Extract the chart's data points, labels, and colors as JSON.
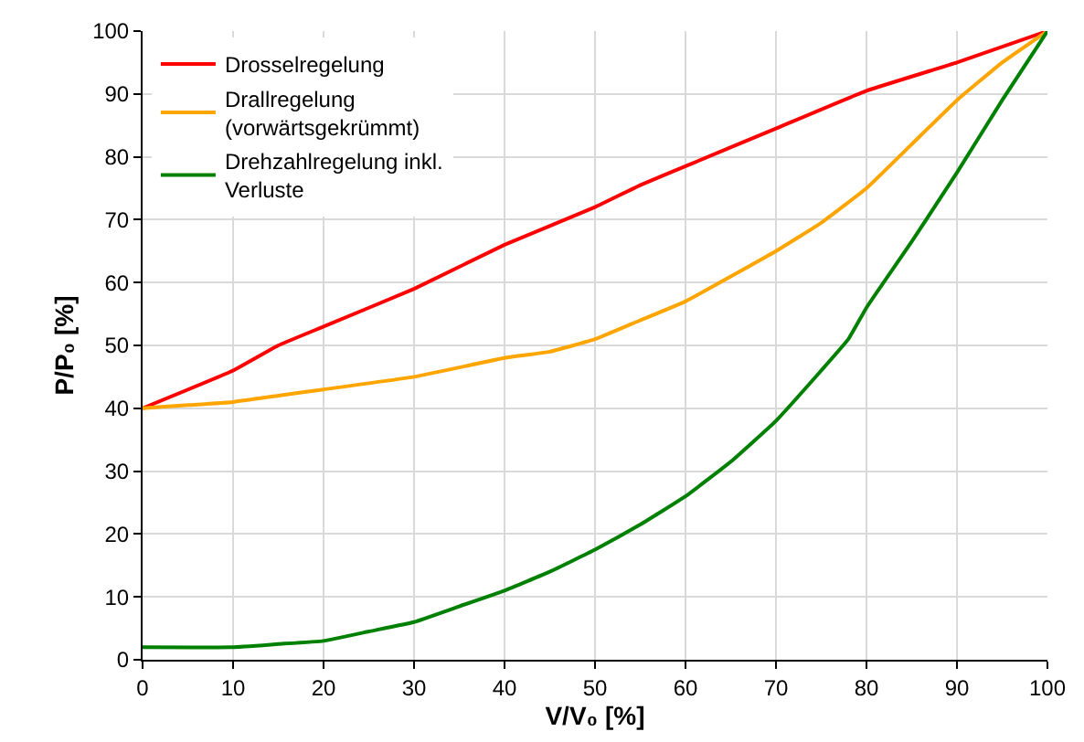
{
  "chart_data": {
    "type": "line",
    "xlabel": "V/V₀ [%]",
    "ylabel": "P/P₀ [%]",
    "xlim": [
      0,
      100
    ],
    "ylim": [
      0,
      100
    ],
    "xticks": [
      0,
      10,
      20,
      30,
      40,
      50,
      60,
      70,
      80,
      90,
      100
    ],
    "yticks": [
      0,
      10,
      20,
      30,
      40,
      50,
      60,
      70,
      80,
      90,
      100
    ],
    "grid": true,
    "legend": "top left",
    "marker": "none",
    "line_style": "solid",
    "series": [
      {
        "name": "Drosselregelung",
        "color": "#ff0000",
        "x": [
          0,
          10,
          15,
          20,
          30,
          40,
          50,
          55,
          60,
          70,
          80,
          90,
          100
        ],
        "values": [
          40,
          46,
          50,
          53,
          59,
          66,
          72,
          75.5,
          78.5,
          84.5,
          90.5,
          95,
          100
        ]
      },
      {
        "name": "Drallregelung\n(vorwärtsgekrümmt)",
        "color": "#ffa500",
        "x": [
          0,
          5,
          10,
          15,
          20,
          30,
          40,
          45,
          50,
          55,
          60,
          70,
          75,
          80,
          85,
          90,
          95,
          100
        ],
        "values": [
          40,
          40.5,
          41,
          42,
          43,
          45,
          48,
          49,
          51,
          54,
          57,
          65,
          69.5,
          75,
          82,
          89,
          95,
          100
        ]
      },
      {
        "name": "Drehzahlregelung inkl.\nVerluste",
        "color": "#008000",
        "x": [
          0,
          10,
          15,
          20,
          25,
          30,
          35,
          40,
          45,
          50,
          55,
          60,
          65,
          70,
          75,
          78,
          80,
          85,
          90,
          95,
          100
        ],
        "values": [
          2,
          2,
          2.5,
          3,
          4.5,
          6,
          8.5,
          11,
          14,
          17.5,
          21.5,
          26,
          31.5,
          38,
          46,
          51,
          56,
          66.5,
          77.5,
          89,
          100
        ]
      }
    ]
  }
}
